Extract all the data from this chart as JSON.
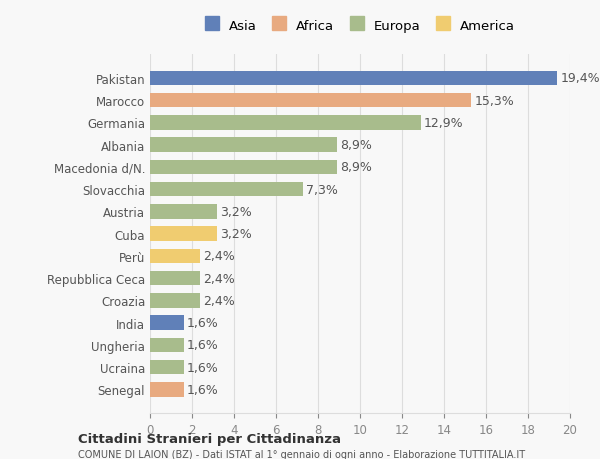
{
  "countries": [
    "Pakistan",
    "Marocco",
    "Germania",
    "Albania",
    "Macedonia d/N.",
    "Slovacchia",
    "Austria",
    "Cuba",
    "Perù",
    "Repubblica Ceca",
    "Croazia",
    "India",
    "Ungheria",
    "Ucraina",
    "Senegal"
  ],
  "values": [
    19.4,
    15.3,
    12.9,
    8.9,
    8.9,
    7.3,
    3.2,
    3.2,
    2.4,
    2.4,
    2.4,
    1.6,
    1.6,
    1.6,
    1.6
  ],
  "labels": [
    "19,4%",
    "15,3%",
    "12,9%",
    "8,9%",
    "8,9%",
    "7,3%",
    "3,2%",
    "3,2%",
    "2,4%",
    "2,4%",
    "2,4%",
    "1,6%",
    "1,6%",
    "1,6%",
    "1,6%"
  ],
  "continents": [
    "Asia",
    "Africa",
    "Europa",
    "Europa",
    "Europa",
    "Europa",
    "Europa",
    "America",
    "America",
    "Europa",
    "Europa",
    "Asia",
    "Europa",
    "Europa",
    "Africa"
  ],
  "colors": {
    "Asia": "#6080b8",
    "Africa": "#e8aa80",
    "Europa": "#a8bc8c",
    "America": "#f0cc70"
  },
  "legend_colors": {
    "Asia": "#6080b8",
    "Africa": "#e8aa80",
    "Europa": "#a8bc8c",
    "America": "#f0cc70"
  },
  "legend_order": [
    "Asia",
    "Africa",
    "Europa",
    "America"
  ],
  "title1": "Cittadini Stranieri per Cittadinanza",
  "title2": "COMUNE DI LAION (BZ) - Dati ISTAT al 1° gennaio di ogni anno - Elaborazione TUTTITALIA.IT",
  "xlim": [
    0,
    20
  ],
  "xticks": [
    0,
    2,
    4,
    6,
    8,
    10,
    12,
    14,
    16,
    18,
    20
  ],
  "bg_color": "#f8f8f8",
  "grid_color": "#dddddd",
  "bar_height": 0.65,
  "label_fontsize": 9,
  "tick_fontsize": 8.5
}
